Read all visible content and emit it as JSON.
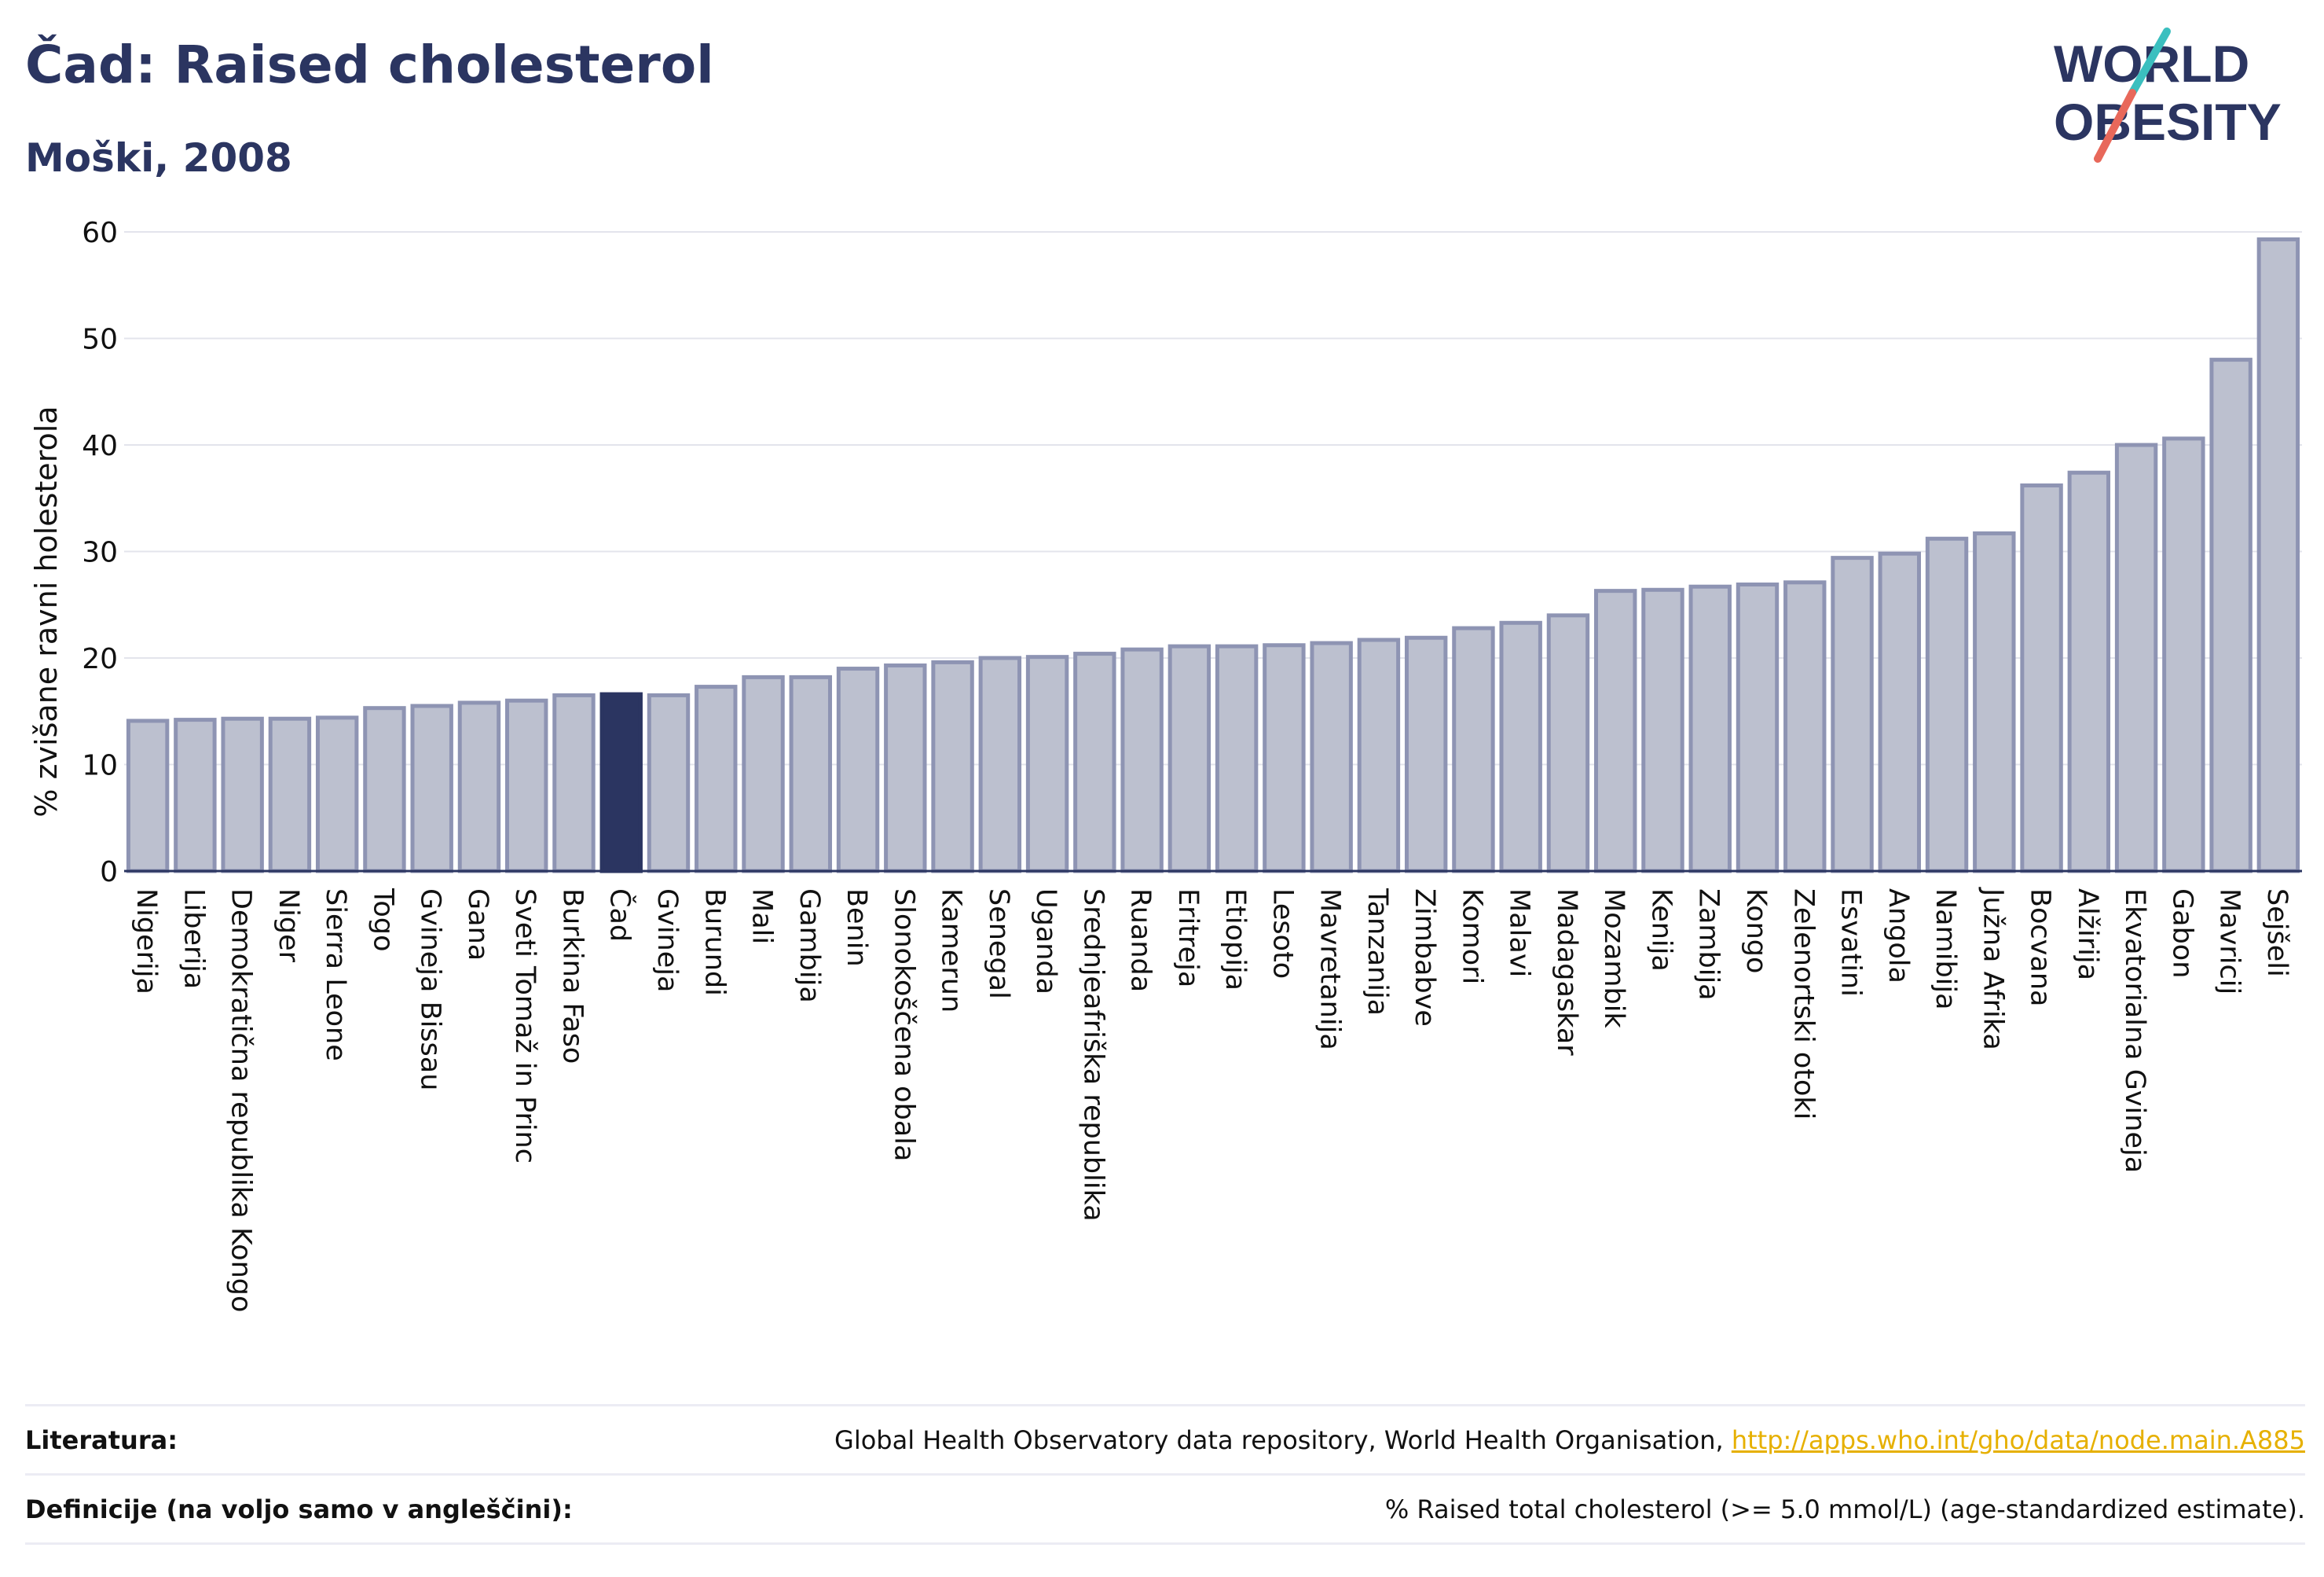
{
  "header": {
    "title": "Čad: Raised cholesterol",
    "subtitle": "Moški, 2008"
  },
  "logo": {
    "line1": "WORLD",
    "line2": "OBESITY"
  },
  "colors": {
    "bar": "#bcc0cf",
    "bar_border": "#8e94b3",
    "highlight": "#2b3561",
    "grid": "#e3e4ec",
    "axis": "#2b3561"
  },
  "chart_data": {
    "type": "bar",
    "ylabel": "% zvišane ravni holesterola",
    "ylim": [
      0,
      62
    ],
    "yticks": [
      0,
      10,
      20,
      30,
      40,
      50,
      60
    ],
    "grid": true,
    "highlight": "Čad",
    "categories": [
      "Nigerija",
      "Liberija",
      "Demokratična republika Kongo",
      "Niger",
      "Sierra Leone",
      "Togo",
      "Gvineja Bissau",
      "Gana",
      "Sveti Tomaž in Princ",
      "Burkina Faso",
      "Čad",
      "Gvineja",
      "Burundi",
      "Mali",
      "Gambija",
      "Benin",
      "Slonokoščena obala",
      "Kamerun",
      "Senegal",
      "Uganda",
      "Srednjeafriška republika",
      "Ruanda",
      "Eritreja",
      "Etiopija",
      "Lesoto",
      "Mavretanija",
      "Tanzanija",
      "Zimbabve",
      "Komori",
      "Malavi",
      "Madagaskar",
      "Mozambik",
      "Kenija",
      "Zambija",
      "Kongo",
      "Zelenortski otoki",
      "Esvatini",
      "Angola",
      "Namibija",
      "Južna Afrika",
      "Bocvana",
      "Alžirija",
      "Ekvatorialna Gvineja",
      "Gabon",
      "Mavricij",
      "Sejšeli"
    ],
    "values": [
      14.1,
      14.2,
      14.3,
      14.3,
      14.4,
      15.3,
      15.5,
      15.8,
      16.0,
      16.5,
      16.6,
      16.5,
      17.3,
      18.2,
      18.2,
      19.0,
      19.3,
      19.6,
      20.0,
      20.1,
      20.4,
      20.8,
      21.1,
      21.1,
      21.2,
      21.4,
      21.7,
      21.9,
      22.8,
      23.3,
      24.0,
      26.3,
      26.4,
      26.7,
      26.9,
      27.1,
      29.4,
      29.8,
      31.2,
      31.7,
      36.2,
      37.4,
      40.0,
      40.6,
      48.0,
      59.3
    ]
  },
  "footer": {
    "source_label": "Literatura:",
    "source_text": "Global Health Observatory data repository, World Health Organisation, ",
    "source_link": "http://apps.who.int/gho/data/node.main.A885",
    "definition_label": "Definicije (na voljo samo v angleščini):",
    "definition_text": "% Raised total cholesterol (>= 5.0 mmol/L) (age-standardized estimate)."
  }
}
